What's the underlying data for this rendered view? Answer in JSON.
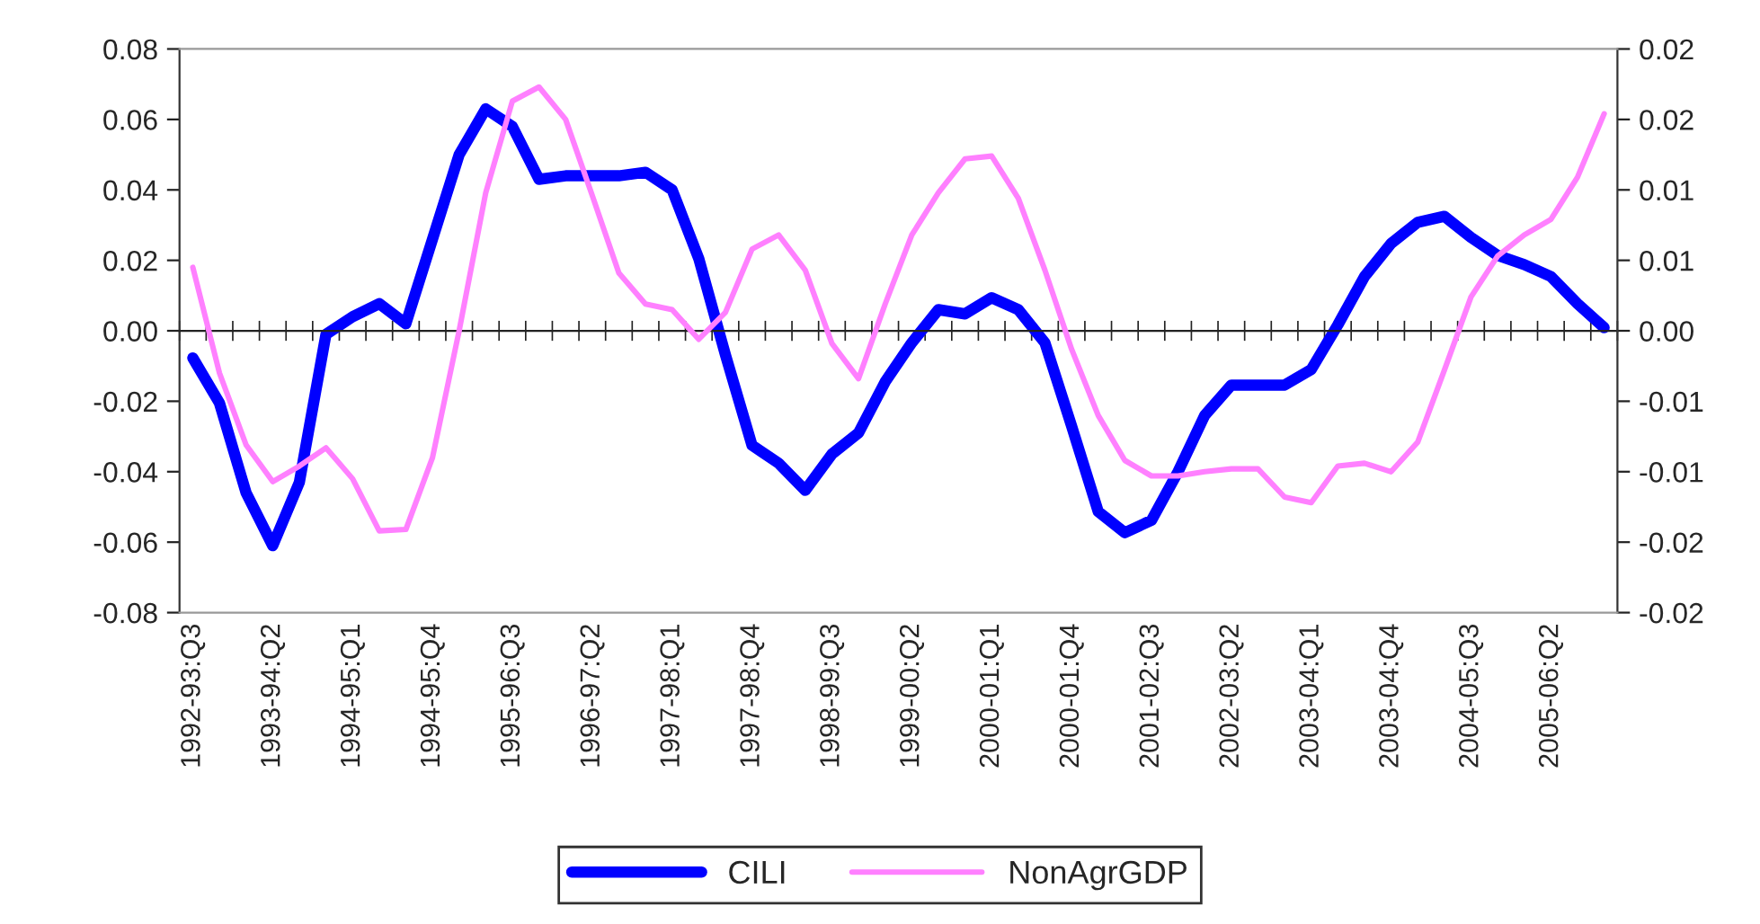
{
  "chart_data": {
    "type": "line",
    "categories": [
      "1992-93:Q3",
      null,
      null,
      "1993-94:Q2",
      null,
      null,
      "1994-95:Q1",
      null,
      null,
      "1994-95:Q4",
      null,
      null,
      "1995-96:Q3",
      null,
      null,
      "1996-97:Q2",
      null,
      null,
      "1997-98:Q1",
      null,
      null,
      "1997-98:Q4",
      null,
      null,
      "1998-99:Q3",
      null,
      null,
      "1999-00:Q2",
      null,
      null,
      "2000-01:Q1",
      null,
      null,
      "2000-01:Q4",
      null,
      null,
      "2001-02:Q3",
      null,
      null,
      "2002-03:Q2",
      null,
      null,
      "2003-04:Q1",
      null,
      null,
      "2003-04:Q4",
      null,
      null,
      "2004-05:Q3",
      null,
      null,
      "2005-06:Q2",
      null,
      null
    ],
    "series": [
      {
        "name": "CILI",
        "color": "#0000ff",
        "values": [
          -0.0077,
          -0.0205,
          -0.046,
          -0.061,
          -0.043,
          -0.001,
          0.004,
          0.0077,
          0.002,
          0.026,
          0.05,
          0.063,
          0.058,
          0.043,
          0.044,
          0.044,
          0.044,
          0.045,
          0.04,
          0.0205,
          -0.0068,
          -0.0325,
          -0.0376,
          -0.0453,
          -0.035,
          -0.029,
          -0.0145,
          -0.0034,
          0.006,
          0.0048,
          0.0094,
          0.006,
          -0.0034,
          -0.027,
          -0.0513,
          -0.0573,
          -0.0538,
          -0.04,
          -0.024,
          -0.0154,
          -0.0154,
          -0.0154,
          -0.011,
          0.0017,
          0.0154,
          0.0248,
          0.0308,
          0.0325,
          0.0265,
          0.0214,
          0.0188,
          0.0154,
          0.0077,
          0.0009
        ]
      },
      {
        "name": "NonAgrGDP",
        "color": "#ff80ff",
        "axis": "y2",
        "values": [
          0.0045,
          -0.003,
          -0.0081,
          -0.0107,
          -0.0096,
          -0.0083,
          -0.0105,
          -0.0142,
          -0.0141,
          -0.009,
          0.0,
          0.0098,
          0.0163,
          0.0173,
          0.015,
          0.0096,
          0.0041,
          0.0019,
          0.0015,
          -0.0006,
          0.0013,
          0.0058,
          0.0068,
          0.0043,
          -0.0009,
          -0.0034,
          0.0019,
          0.0068,
          0.0098,
          0.0122,
          0.0124,
          0.0094,
          0.0043,
          -0.0013,
          -0.006,
          -0.0092,
          -0.0103,
          -0.0103,
          -0.01,
          -0.0098,
          -0.0098,
          -0.0118,
          -0.0122,
          -0.0096,
          -0.0094,
          -0.01,
          -0.0079,
          -0.0028,
          0.0024,
          0.0053,
          0.0068,
          0.0079,
          0.0109,
          0.0154
        ]
      }
    ],
    "ylim": [
      -0.08,
      0.08
    ],
    "yticks": [
      {
        "value": -0.08,
        "label": "-0.08"
      },
      {
        "value": -0.06,
        "label": "-0.06"
      },
      {
        "value": -0.04,
        "label": "-0.04"
      },
      {
        "value": -0.02,
        "label": "-0.02"
      },
      {
        "value": 0.0,
        "label": "0.00"
      },
      {
        "value": 0.02,
        "label": "0.02"
      },
      {
        "value": 0.04,
        "label": "0.04"
      },
      {
        "value": 0.06,
        "label": "0.06"
      },
      {
        "value": 0.08,
        "label": "0.08"
      }
    ],
    "y2lim": [
      -0.02,
      0.02
    ],
    "y2ticks": [
      {
        "value": -0.02,
        "label": "-0.02"
      },
      {
        "value": -0.015,
        "label": "-0.02"
      },
      {
        "value": -0.01,
        "label": "-0.01"
      },
      {
        "value": -0.005,
        "label": "-0.01"
      },
      {
        "value": 0.0,
        "label": "0.00"
      },
      {
        "value": 0.005,
        "label": "0.01"
      },
      {
        "value": 0.01,
        "label": "0.01"
      },
      {
        "value": 0.015,
        "label": "0.02"
      },
      {
        "value": 0.02,
        "label": "0.02"
      }
    ],
    "legend": "bottom",
    "marker": "none",
    "line_style": "solid"
  }
}
